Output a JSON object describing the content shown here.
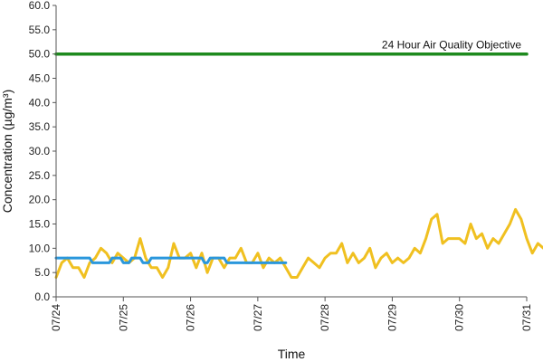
{
  "chart_data": {
    "type": "line",
    "title": "",
    "xlabel": "Time",
    "ylabel": "Concentration (µg/m³)",
    "ylim": [
      0,
      60
    ],
    "yticks": [
      "0.0",
      "5.0",
      "10.0",
      "15.0",
      "20.0",
      "25.0",
      "30.0",
      "35.0",
      "40.0",
      "45.0",
      "50.0",
      "55.0",
      "60.0"
    ],
    "xlim": [
      "07/24",
      "07/31"
    ],
    "xticks": [
      "07/24",
      "07/25",
      "07/26",
      "07/27",
      "07/28",
      "07/29",
      "07/30",
      "07/31"
    ],
    "grid": false,
    "legend": "none",
    "annotation": {
      "text": "24 Hour Air Quality Objective",
      "value": 50
    },
    "series": [
      {
        "role": "hourly",
        "color": "#f0c020",
        "points": [
          [
            "07/24 00:00",
            4
          ],
          [
            "07/24 02:00",
            7
          ],
          [
            "07/24 04:00",
            8
          ],
          [
            "07/24 06:00",
            6
          ],
          [
            "07/24 08:00",
            6
          ],
          [
            "07/24 10:00",
            4
          ],
          [
            "07/24 12:00",
            7
          ],
          [
            "07/24 14:00",
            8
          ],
          [
            "07/24 16:00",
            10
          ],
          [
            "07/24 18:00",
            9
          ],
          [
            "07/24 20:00",
            7
          ],
          [
            "07/24 22:00",
            9
          ],
          [
            "07/25 00:00",
            8
          ],
          [
            "07/25 02:00",
            7
          ],
          [
            "07/25 04:00",
            8
          ],
          [
            "07/25 06:00",
            12
          ],
          [
            "07/25 08:00",
            8
          ],
          [
            "07/25 10:00",
            6
          ],
          [
            "07/25 12:00",
            6
          ],
          [
            "07/25 14:00",
            4
          ],
          [
            "07/25 16:00",
            6
          ],
          [
            "07/25 18:00",
            11
          ],
          [
            "07/25 20:00",
            8
          ],
          [
            "07/25 22:00",
            8
          ],
          [
            "07/26 00:00",
            9
          ],
          [
            "07/26 02:00",
            6
          ],
          [
            "07/26 04:00",
            9
          ],
          [
            "07/26 06:00",
            5
          ],
          [
            "07/26 08:00",
            8
          ],
          [
            "07/26 10:00",
            8
          ],
          [
            "07/26 12:00",
            6
          ],
          [
            "07/26 14:00",
            8
          ],
          [
            "07/26 16:00",
            8
          ],
          [
            "07/26 18:00",
            10
          ],
          [
            "07/26 20:00",
            7
          ],
          [
            "07/26 22:00",
            7
          ],
          [
            "07/27 00:00",
            9
          ],
          [
            "07/27 02:00",
            6
          ],
          [
            "07/27 04:00",
            8
          ],
          [
            "07/27 06:00",
            7
          ],
          [
            "07/27 08:00",
            8
          ],
          [
            "07/27 10:00",
            6
          ],
          [
            "07/27 12:00",
            4
          ],
          [
            "07/27 14:00",
            4
          ],
          [
            "07/27 16:00",
            6
          ],
          [
            "07/27 18:00",
            8
          ],
          [
            "07/27 20:00",
            7
          ],
          [
            "07/27 22:00",
            6
          ],
          [
            "07/28 00:00",
            8
          ],
          [
            "07/28 02:00",
            9
          ],
          [
            "07/28 04:00",
            9
          ],
          [
            "07/28 06:00",
            11
          ],
          [
            "07/28 08:00",
            7
          ],
          [
            "07/28 10:00",
            9
          ],
          [
            "07/28 12:00",
            7
          ],
          [
            "07/28 14:00",
            8
          ],
          [
            "07/28 16:00",
            10
          ],
          [
            "07/28 18:00",
            6
          ],
          [
            "07/28 20:00",
            8
          ],
          [
            "07/28 22:00",
            9
          ],
          [
            "07/29 00:00",
            7
          ],
          [
            "07/29 02:00",
            8
          ],
          [
            "07/29 04:00",
            7
          ],
          [
            "07/29 06:00",
            8
          ],
          [
            "07/29 08:00",
            10
          ],
          [
            "07/29 10:00",
            9
          ],
          [
            "07/29 12:00",
            12
          ],
          [
            "07/29 14:00",
            16
          ],
          [
            "07/29 16:00",
            17
          ],
          [
            "07/29 18:00",
            11
          ],
          [
            "07/29 20:00",
            12
          ],
          [
            "07/29 22:00",
            12
          ],
          [
            "07/30 00:00",
            12
          ],
          [
            "07/30 02:00",
            11
          ],
          [
            "07/30 04:00",
            15
          ],
          [
            "07/30 06:00",
            12
          ],
          [
            "07/30 08:00",
            13
          ],
          [
            "07/30 10:00",
            10
          ],
          [
            "07/30 12:00",
            12
          ],
          [
            "07/30 14:00",
            11
          ],
          [
            "07/30 16:00",
            13
          ],
          [
            "07/30 18:00",
            15
          ],
          [
            "07/30 20:00",
            18
          ],
          [
            "07/30 22:00",
            16
          ],
          [
            "07/31 00:00",
            12
          ],
          [
            "07/31 02:00",
            9
          ],
          [
            "07/31 04:00",
            11
          ],
          [
            "07/31 06:00",
            10
          ],
          [
            "07/31 08:00",
            11
          ],
          [
            "07/31 10:00",
            9
          ],
          [
            "07/31 12:00",
            11
          ],
          [
            "07/31 14:00",
            9
          ],
          [
            "07/31 16:00",
            10
          ],
          [
            "07/31 18:00",
            8
          ],
          [
            "07/31 20:00",
            8
          ],
          [
            "07/31 22:00",
            9
          ]
        ]
      },
      {
        "role": "24-hour rolling average",
        "color": "#2a97dc",
        "points": [
          [
            "07/24",
            8
          ],
          [
            "07/24 12:00",
            8
          ],
          [
            "07/24 13:00",
            7
          ],
          [
            "07/24 19:00",
            7
          ],
          [
            "07/24 20:00",
            8
          ],
          [
            "07/24 23:00",
            8
          ],
          [
            "07/25 00:00",
            7
          ],
          [
            "07/25 02:00",
            7
          ],
          [
            "07/25 03:00",
            8
          ],
          [
            "07/25 06:00",
            8
          ],
          [
            "07/25 07:00",
            7
          ],
          [
            "07/25 09:00",
            7
          ],
          [
            "07/25 10:00",
            8
          ],
          [
            "07/26 04:00",
            8
          ],
          [
            "07/26 05:00",
            7
          ],
          [
            "07/26 06:00",
            7
          ],
          [
            "07/26 07:00",
            8
          ],
          [
            "07/26 12:00",
            8
          ],
          [
            "07/26 13:00",
            7
          ],
          [
            "07/27 08:00",
            7
          ],
          [
            "07/27 09:00",
            7
          ],
          [
            "07/27 10:00",
            7
          ]
        ]
      },
      {
        "role": "objective",
        "color": "#1e8a1e",
        "points": [
          [
            "07/24",
            50
          ],
          [
            "07/31",
            50
          ]
        ]
      }
    ]
  }
}
